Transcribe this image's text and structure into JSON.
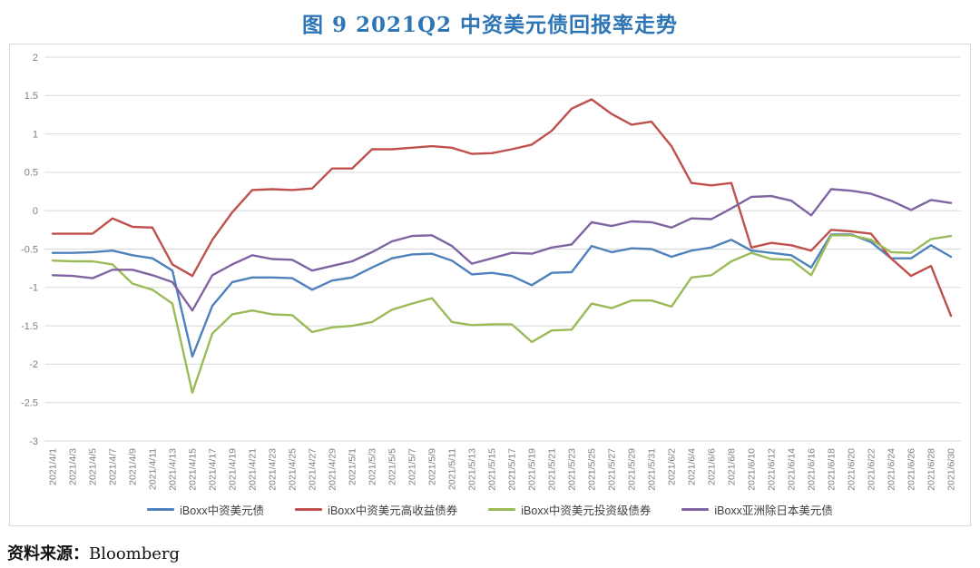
{
  "title": "图 9   2021Q2 中资美元债回报率走势",
  "source": {
    "label": "资料来源：",
    "value": "Bloomberg"
  },
  "chart_data": {
    "type": "line",
    "title": "图 9 2021Q2 中资美元债回报率走势",
    "xlabel": "",
    "ylabel": "",
    "ylim": [
      -3,
      2
    ],
    "ytick_step": 0.5,
    "y_ticks": [
      "2",
      "1.5",
      "1",
      "0.5",
      "0",
      "-0.5",
      "-1",
      "-1.5",
      "-2",
      "-2.5",
      "-3"
    ],
    "grid": true,
    "legend_position": "bottom",
    "x": [
      "2021/4/1",
      "2021/4/3",
      "2021/4/5",
      "2021/4/7",
      "2021/4/9",
      "2021/4/11",
      "2021/4/13",
      "2021/4/15",
      "2021/4/17",
      "2021/4/19",
      "2021/4/21",
      "2021/4/23",
      "2021/4/25",
      "2021/4/27",
      "2021/4/29",
      "2021/5/1",
      "2021/5/3",
      "2021/5/5",
      "2021/5/7",
      "2021/5/9",
      "2021/5/11",
      "2021/5/13",
      "2021/5/15",
      "2021/5/17",
      "2021/5/19",
      "2021/5/21",
      "2021/5/23",
      "2021/5/25",
      "2021/5/27",
      "2021/5/29",
      "2021/5/31",
      "2021/6/2",
      "2021/6/4",
      "2021/6/6",
      "2021/6/8",
      "2021/6/10",
      "2021/6/12",
      "2021/6/14",
      "2021/6/16",
      "2021/6/18",
      "2021/6/20",
      "2021/6/22",
      "2021/6/24",
      "2021/6/26",
      "2021/6/28",
      "2021/6/30"
    ],
    "series": [
      {
        "name": "iBoxx中资美元债",
        "color": "#4F81BD",
        "values": [
          -0.55,
          -0.55,
          -0.54,
          -0.52,
          -0.58,
          -0.62,
          -0.78,
          -1.9,
          -1.24,
          -0.93,
          -0.87,
          -0.87,
          -0.88,
          -1.03,
          -0.91,
          -0.87,
          -0.74,
          -0.62,
          -0.57,
          -0.56,
          -0.65,
          -0.83,
          -0.81,
          -0.85,
          -0.97,
          -0.81,
          -0.8,
          -0.46,
          -0.54,
          -0.49,
          -0.5,
          -0.6,
          -0.52,
          -0.48,
          -0.38,
          -0.52,
          -0.55,
          -0.58,
          -0.74,
          -0.31,
          -0.31,
          -0.41,
          -0.62,
          -0.62,
          -0.45,
          -0.6
        ]
      },
      {
        "name": "iBoxx中资美元高收益债券",
        "color": "#C0504D",
        "values": [
          -0.3,
          -0.3,
          -0.3,
          -0.1,
          -0.21,
          -0.22,
          -0.7,
          -0.85,
          -0.38,
          -0.02,
          0.27,
          0.28,
          0.27,
          0.29,
          0.55,
          0.55,
          0.8,
          0.8,
          0.82,
          0.84,
          0.82,
          0.74,
          0.75,
          0.8,
          0.86,
          1.04,
          1.33,
          1.45,
          1.26,
          1.12,
          1.16,
          0.84,
          0.36,
          0.33,
          0.36,
          -0.48,
          -0.42,
          -0.45,
          -0.52,
          -0.25,
          -0.27,
          -0.3,
          -0.62,
          -0.85,
          -0.72,
          -1.37
        ]
      },
      {
        "name": "iBoxx中资美元投资级债券",
        "color": "#9BBB59",
        "values": [
          -0.65,
          -0.66,
          -0.66,
          -0.7,
          -0.95,
          -1.03,
          -1.21,
          -2.37,
          -1.6,
          -1.35,
          -1.3,
          -1.35,
          -1.36,
          -1.58,
          -1.52,
          -1.5,
          -1.45,
          -1.29,
          -1.21,
          -1.14,
          -1.45,
          -1.49,
          -1.48,
          -1.48,
          -1.71,
          -1.56,
          -1.55,
          -1.21,
          -1.27,
          -1.17,
          -1.17,
          -1.25,
          -0.87,
          -0.84,
          -0.66,
          -0.55,
          -0.63,
          -0.64,
          -0.84,
          -0.32,
          -0.32,
          -0.38,
          -0.54,
          -0.55,
          -0.37,
          -0.33
        ]
      },
      {
        "name": "iBoxx亚洲除日本美元债",
        "color": "#8064A2",
        "values": [
          -0.84,
          -0.85,
          -0.88,
          -0.77,
          -0.77,
          -0.84,
          -0.93,
          -1.3,
          -0.84,
          -0.7,
          -0.58,
          -0.63,
          -0.64,
          -0.78,
          -0.72,
          -0.66,
          -0.54,
          -0.4,
          -0.33,
          -0.32,
          -0.46,
          -0.69,
          -0.62,
          -0.55,
          -0.56,
          -0.48,
          -0.44,
          -0.15,
          -0.2,
          -0.14,
          -0.15,
          -0.22,
          -0.1,
          -0.11,
          0.03,
          0.18,
          0.19,
          0.13,
          -0.06,
          0.28,
          0.26,
          0.22,
          0.13,
          0.01,
          0.14,
          0.1
        ]
      }
    ],
    "style": {
      "grid_color": "#d9d9d9",
      "axis_label_color": "#7f7f7f",
      "line_width": 2.4
    }
  }
}
